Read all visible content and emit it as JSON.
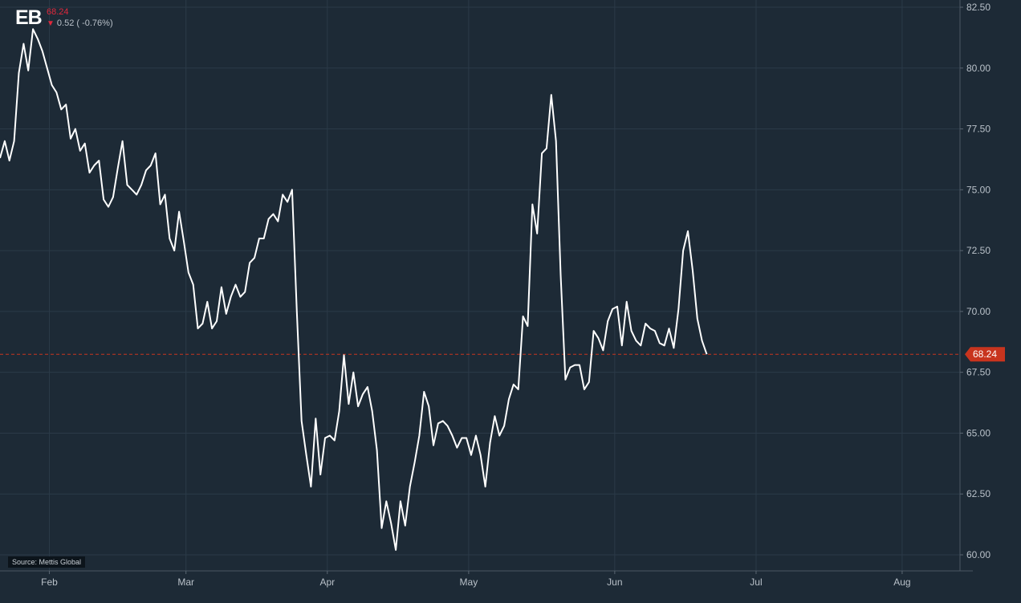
{
  "header": {
    "ticker": "EB",
    "price": "68.24",
    "change": "0.52 ( -0.76%)",
    "direction_color": "#e0283c"
  },
  "footer": {
    "source": "Source: Mettis Global"
  },
  "colors": {
    "background": "#1d2a36",
    "line": "#ffffff",
    "grid": "#2b3a48",
    "last_price": "#c8341e"
  },
  "chart_data": {
    "type": "line",
    "title": "",
    "xlabel": "",
    "ylabel": "",
    "ylim": [
      59.7,
      82.6
    ],
    "yticks": [
      "82.50",
      "80.00",
      "77.50",
      "75.00",
      "72.50",
      "70.00",
      "67.50",
      "65.00",
      "62.50",
      "60.00"
    ],
    "x_ticks": [
      "Feb",
      "Mar",
      "Apr",
      "May",
      "Jun",
      "Jul",
      "Aug"
    ],
    "x_tick_positions": [
      10.3,
      39.3,
      69.3,
      99.3,
      130.3,
      160.3,
      191.3
    ],
    "grid": true,
    "last_value": "68.24",
    "series": [
      {
        "values": [
          76.3,
          77.0,
          76.2,
          77.0,
          79.8,
          81.0,
          79.9,
          81.6,
          81.2,
          80.7,
          80.0,
          79.3,
          79.0,
          78.3,
          78.5,
          77.1,
          77.5,
          76.6,
          76.9,
          75.7,
          76.0,
          76.2,
          74.6,
          74.3,
          74.7,
          75.9,
          77.0,
          75.2,
          75.0,
          74.8,
          75.2,
          75.8,
          76.0,
          76.5,
          74.4,
          74.8,
          73.0,
          72.5,
          74.1,
          72.9,
          71.6,
          71.1,
          69.3,
          69.5,
          70.4,
          69.3,
          69.6,
          71.0,
          69.9,
          70.6,
          71.1,
          70.6,
          70.8,
          72.0,
          72.2,
          73.0,
          73.0,
          73.8,
          74.0,
          73.7,
          74.8,
          74.5,
          75.0,
          70.0,
          65.5,
          64.1,
          62.8,
          65.6,
          63.3,
          64.8,
          64.9,
          64.7,
          65.9,
          68.2,
          66.2,
          67.5,
          66.1,
          66.6,
          66.9,
          65.9,
          64.3,
          61.1,
          62.2,
          61.3,
          60.2,
          62.2,
          61.2,
          62.8,
          63.8,
          64.9,
          66.7,
          66.1,
          64.5,
          65.4,
          65.5,
          65.3,
          64.9,
          64.4,
          64.8,
          64.8,
          64.1,
          64.9,
          64.1,
          62.8,
          64.6,
          65.7,
          64.9,
          65.3,
          66.4,
          67.0,
          66.8,
          69.8,
          69.4,
          74.4,
          73.2,
          76.5,
          76.7,
          78.9,
          77.0,
          71.5,
          67.2,
          67.7,
          67.8,
          67.8,
          66.8,
          67.1,
          69.2,
          68.9,
          68.4,
          69.6,
          70.1,
          70.2,
          68.6,
          70.4,
          69.2,
          68.8,
          68.6,
          69.5,
          69.3,
          69.2,
          68.7,
          68.6,
          69.3,
          68.5,
          70.1,
          72.5,
          73.3,
          71.7,
          69.7,
          68.8,
          68.24
        ]
      }
    ]
  }
}
